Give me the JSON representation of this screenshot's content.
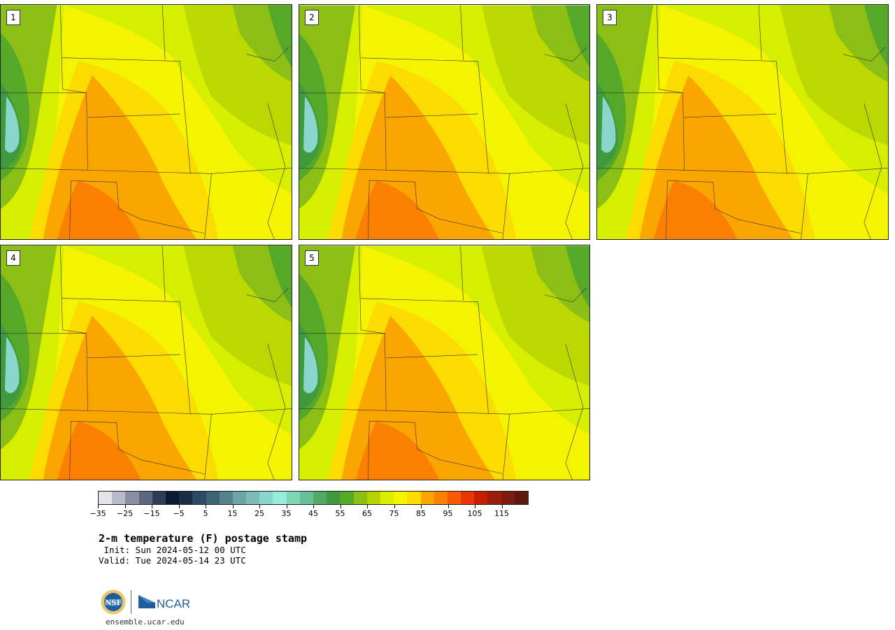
{
  "panels": [
    {
      "label": "1"
    },
    {
      "label": "2"
    },
    {
      "label": "3"
    },
    {
      "label": "4"
    },
    {
      "label": "5"
    }
  ],
  "colorbar": {
    "colors": [
      "#e2e4ea",
      "#b7b8c8",
      "#8a8ea5",
      "#5d6680",
      "#2c3c5a",
      "#0e1a33",
      "#192d48",
      "#2c4a63",
      "#3f6276",
      "#568389",
      "#6ca3a6",
      "#7cbdb6",
      "#8ad6cd",
      "#96ecdd",
      "#7ed4b3",
      "#68c098",
      "#52a866",
      "#3f9a3e",
      "#55a828",
      "#8cbf16",
      "#b4d400",
      "#dcec00",
      "#f4f400",
      "#fbdb00",
      "#fba500",
      "#fb8000",
      "#f55c00",
      "#e83600",
      "#c51e00",
      "#9e1c0b",
      "#7d1c0e",
      "#5e190c"
    ],
    "tick_labels": [
      "−35",
      "−25",
      "−15",
      "−5",
      "5",
      "15",
      "25",
      "35",
      "45",
      "55",
      "65",
      "75",
      "85",
      "95",
      "105",
      "115"
    ]
  },
  "title": "2-m temperature (F) postage stamp",
  "init": " Init: Sun 2024-05-12 00 UTC",
  "valid": "Valid: Tue 2024-05-14 23 UTC",
  "logos": {
    "nsf": "NSF",
    "ncar": "NCAR"
  },
  "site": "ensemble.ucar.edu"
}
